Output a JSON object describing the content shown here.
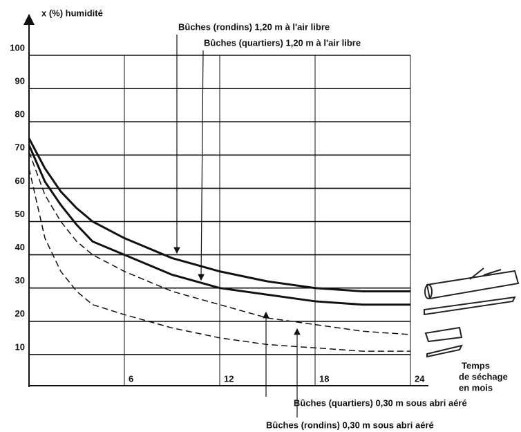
{
  "chart_data": {
    "type": "line",
    "y_label": "x (%) humidité",
    "x_label": [
      "Temps",
      "de séchage",
      "en mois"
    ],
    "x": [
      0,
      1,
      2,
      3,
      4,
      6,
      9,
      12,
      15,
      18,
      21,
      24
    ],
    "series": [
      {
        "name": "Bûches (rondins) 1,20 m à l'air libre",
        "color": "#111111",
        "dash": "solid",
        "values": [
          75,
          66,
          59,
          54,
          50,
          45,
          39,
          35,
          32,
          30,
          29,
          29
        ]
      },
      {
        "name": "Bûches (quartiers) 1,20 m à l'air libre",
        "color": "#111111",
        "dash": "solid",
        "values": [
          73,
          62,
          55,
          49,
          44,
          40,
          34,
          30,
          28,
          26,
          25,
          25
        ]
      },
      {
        "name": "Bûches (rondins) 0,30 m sous abri aéré",
        "color": "#111111",
        "dash": "dashed",
        "values": [
          71,
          58,
          50,
          44,
          40,
          35,
          29,
          25,
          21,
          19,
          17,
          16
        ]
      },
      {
        "name": "Bûches (quartiers) 0,30 m sous abri aéré",
        "color": "#111111",
        "dash": "dashed",
        "values": [
          66,
          45,
          35,
          29,
          25,
          22,
          18,
          15,
          13,
          12,
          11,
          11
        ]
      }
    ],
    "xlim": [
      0,
      24
    ],
    "xticks": [
      6,
      12,
      18,
      24
    ],
    "ylim": [
      0,
      100
    ],
    "yticks": [
      10,
      20,
      30,
      40,
      50,
      60,
      70,
      80,
      90,
      100
    ],
    "grid": true
  }
}
